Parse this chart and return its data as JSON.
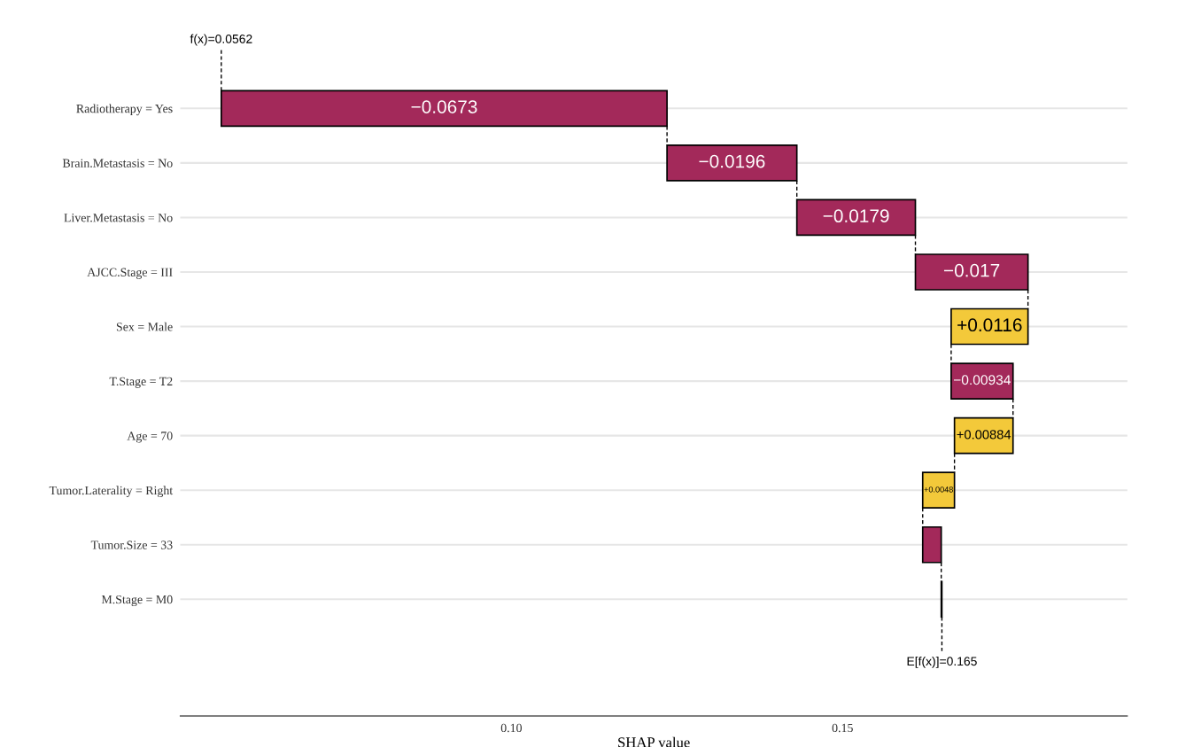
{
  "chart_data": {
    "type": "bar",
    "orientation": "horizontal",
    "xlabel": "SHAP value",
    "categories": [
      "Radiotherapy = Yes",
      "Brain.Metastasis = No",
      "Liver.Metastasis = No",
      "AJCC.Stage = III",
      "Sex = Male",
      "T.Stage = T2",
      "Age = 70",
      "Tumor.Laterality = Right",
      "Tumor.Size = 33",
      "M.Stage = M0"
    ],
    "base": [
      0.1235,
      0.1431,
      0.161,
      0.178,
      0.1664,
      0.17574,
      0.1669,
      0.1621,
      0.1649,
      0.165
    ],
    "values": [
      -0.0673,
      -0.0196,
      -0.0179,
      -0.017,
      0.0116,
      -0.00934,
      0.00884,
      0.0048,
      -0.0028,
      -0.0001
    ],
    "colors": [
      "#a3295a",
      "#a3295a",
      "#a3295a",
      "#a3295a",
      "#f3c93a",
      "#a3295a",
      "#f3c93a",
      "#f3c93a",
      "#a3295a",
      "#a3295a"
    ],
    "value_labels": [
      "−0.0673",
      "−0.0196",
      "−0.0179",
      "−0.017",
      "+0.0116",
      "−0.00934",
      "+0.00884",
      "+0.0048",
      null,
      null
    ],
    "xlim": [
      0.05,
      0.193
    ],
    "xticks": [
      {
        "value": 0.1,
        "label": "0.10"
      },
      {
        "value": 0.15,
        "label": "0.15"
      }
    ],
    "grid": "y",
    "annotations": [
      {
        "text": "f(x)=0.0562",
        "x": 0.0562
      },
      {
        "text": "E[f(x)]=0.165",
        "x": 0.165
      }
    ]
  }
}
